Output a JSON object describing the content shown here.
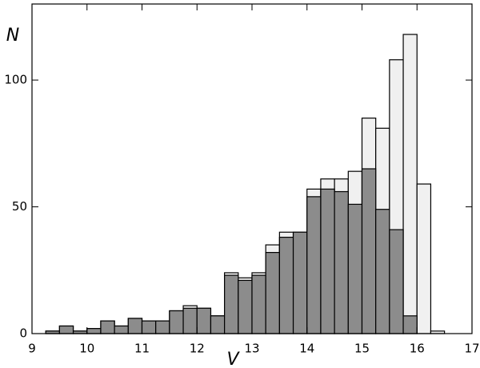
{
  "chart_data": {
    "type": "histogram",
    "xlabel": "V",
    "ylabel": "N",
    "bins": [
      9.25,
      9.5,
      9.75,
      10,
      10.25,
      10.5,
      10.75,
      11,
      11.25,
      11.5,
      11.75,
      12,
      12.25,
      12.5,
      12.75,
      13,
      13.25,
      13.5,
      13.75,
      14,
      14.25,
      14.5,
      14.75,
      15,
      15.25,
      15.5,
      15.75,
      16,
      16.25,
      16.5
    ],
    "series": [
      {
        "color": "#f0f0f0",
        "values": [
          1,
          3,
          1,
          2,
          5,
          3,
          6,
          5,
          5,
          9,
          11,
          10,
          7,
          24,
          22,
          24,
          35,
          40,
          40,
          57,
          61,
          61,
          64,
          85,
          81,
          108,
          118,
          59,
          1
        ]
      },
      {
        "color": "#8c8c8c",
        "values": [
          1,
          3,
          1,
          2,
          5,
          3,
          6,
          5,
          5,
          9,
          10,
          10,
          7,
          23,
          21,
          23,
          32,
          38,
          40,
          54,
          57,
          56,
          51,
          65,
          49,
          41,
          7,
          0,
          0
        ]
      }
    ],
    "xlim": [
      9,
      17
    ],
    "ylim": [
      0,
      130
    ],
    "xticks": [
      9,
      10,
      11,
      12,
      13,
      14,
      15,
      16,
      17
    ],
    "yticks": [
      0,
      50,
      100
    ]
  }
}
